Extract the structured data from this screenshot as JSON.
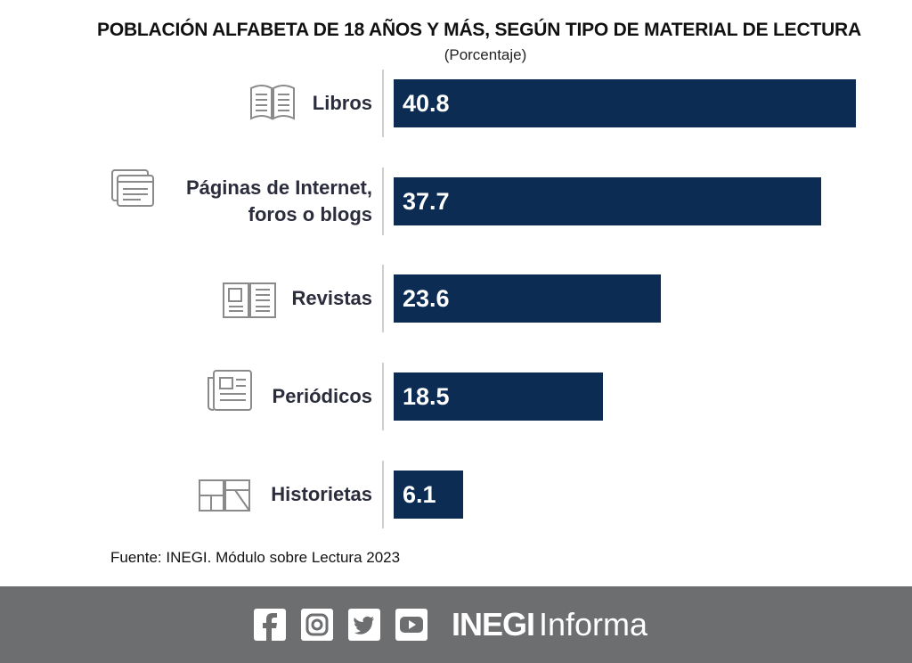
{
  "chart_data": {
    "type": "bar",
    "orientation": "horizontal",
    "title": "POBLACIÓN ALFABETA DE 18 AÑOS Y MÁS, SEGÚN TIPO DE MATERIAL DE LECTURA",
    "subtitle": "(Porcentaje)",
    "categories": [
      "Libros",
      "Páginas de Internet, foros o blogs",
      "Revistas",
      "Periódicos",
      "Historietas"
    ],
    "values": [
      40.8,
      37.7,
      23.6,
      18.5,
      6.1
    ],
    "color": "#0c2c53",
    "source": "Fuente: INEGI. Módulo sobre Lectura 2023"
  },
  "footer": {
    "brand_bold": "INEGI",
    "brand": "Informa"
  }
}
